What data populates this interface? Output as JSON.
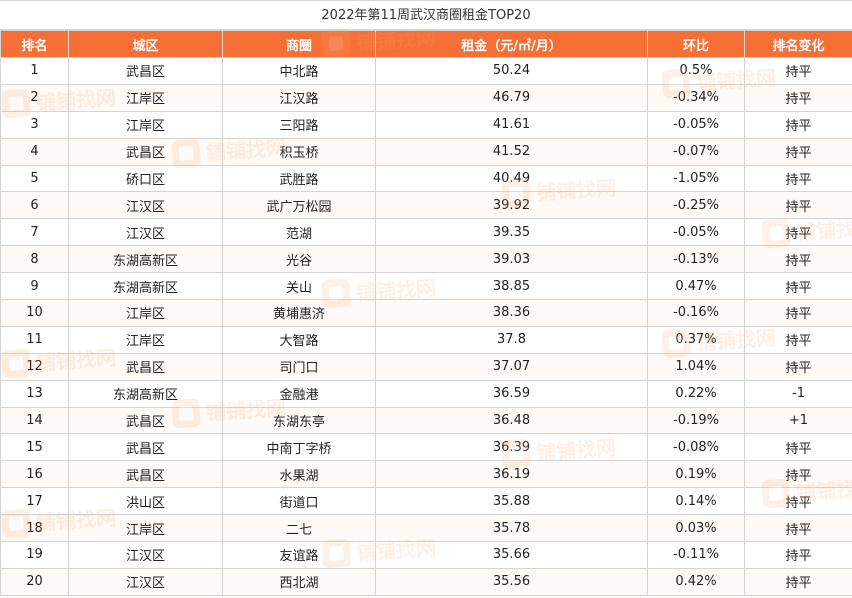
{
  "title": "2022年第11周武汉商圈租金TOP20",
  "columns": [
    "排名",
    "城区",
    "商圈",
    "租金（元/㎡/月）",
    "环比",
    "排名变化"
  ],
  "rows": [
    [
      "1",
      "武昌区",
      "中北路",
      "50.24",
      "0.5%",
      "持平"
    ],
    [
      "2",
      "江岸区",
      "江汉路",
      "46.79",
      "-0.34%",
      "持平"
    ],
    [
      "3",
      "江岸区",
      "三阳路",
      "41.61",
      "-0.05%",
      "持平"
    ],
    [
      "4",
      "武昌区",
      "积玉桥",
      "41.52",
      "-0.07%",
      "持平"
    ],
    [
      "5",
      "硚口区",
      "武胜路",
      "40.49",
      "-1.05%",
      "持平"
    ],
    [
      "6",
      "江汉区",
      "武广万松园",
      "39.92",
      "-0.25%",
      "持平"
    ],
    [
      "7",
      "江汉区",
      "范湖",
      "39.35",
      "-0.05%",
      "持平"
    ],
    [
      "8",
      "东湖高新区",
      "光谷",
      "39.03",
      "-0.13%",
      "持平"
    ],
    [
      "9",
      "东湖高新区",
      "关山",
      "38.85",
      "0.47%",
      "持平"
    ],
    [
      "10",
      "江岸区",
      "黄埔惠济",
      "38.36",
      "-0.16%",
      "持平"
    ],
    [
      "11",
      "江岸区",
      "大智路",
      "37.8",
      "0.37%",
      "持平"
    ],
    [
      "12",
      "武昌区",
      "司门口",
      "37.07",
      "1.04%",
      "持平"
    ],
    [
      "13",
      "东湖高新区",
      "金融港",
      "36.59",
      "0.22%",
      "-1"
    ],
    [
      "14",
      "武昌区",
      "东湖东亭",
      "36.48",
      "-0.19%",
      "+1"
    ],
    [
      "15",
      "武昌区",
      "中南丁字桥",
      "36.39",
      "-0.08%",
      "持平"
    ],
    [
      "16",
      "武昌区",
      "水果湖",
      "36.19",
      "0.19%",
      "持平"
    ],
    [
      "17",
      "洪山区",
      "街道口",
      "35.88",
      "0.14%",
      "持平"
    ],
    [
      "18",
      "江岸区",
      "二七",
      "35.78",
      "0.03%",
      "持平"
    ],
    [
      "19",
      "江汉区",
      "友谊路",
      "35.66",
      "-0.11%",
      "持平"
    ],
    [
      "20",
      "江汉区",
      "西北湖",
      "35.56",
      "0.42%",
      "持平"
    ]
  ],
  "watermark_text": "铺铺找网",
  "colors": {
    "header_bg": "#f86f36",
    "header_text": "#ffffff",
    "border": "#d4d4d4",
    "watermark": "#f5a56a"
  }
}
